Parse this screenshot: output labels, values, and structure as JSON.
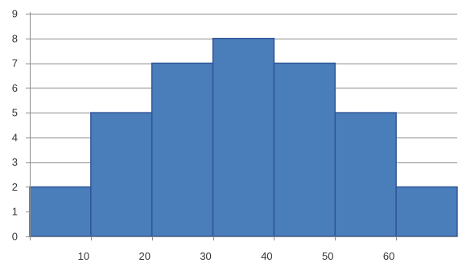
{
  "chart_data": {
    "type": "bar",
    "title": "",
    "xlabel": "",
    "ylabel": "",
    "bins": [
      {
        "start": 0,
        "end": 10,
        "value": 2
      },
      {
        "start": 10,
        "end": 20,
        "value": 5
      },
      {
        "start": 20,
        "end": 30,
        "value": 7
      },
      {
        "start": 30,
        "end": 40,
        "value": 8
      },
      {
        "start": 40,
        "end": 50,
        "value": 7
      },
      {
        "start": 50,
        "end": 60,
        "value": 5
      },
      {
        "start": 60,
        "end": 70,
        "value": 2
      }
    ],
    "values": [
      2,
      5,
      7,
      8,
      7,
      5,
      2
    ],
    "xlim": [
      0,
      70
    ],
    "ylim": [
      0,
      9
    ],
    "x_ticks": [
      10,
      20,
      30,
      40,
      50,
      60
    ],
    "x_tick_labels": [
      "10",
      "20",
      "30",
      "40",
      "50",
      "60"
    ],
    "y_ticks": [
      0,
      1,
      2,
      3,
      4,
      5,
      6,
      7,
      8,
      9
    ],
    "y_tick_labels": [
      "0",
      "1",
      "2",
      "3",
      "4",
      "5",
      "6",
      "7",
      "8",
      "9"
    ],
    "grid": "horizontal",
    "legend": "none",
    "colors": {
      "bar_fill": "#4a7ebb",
      "bar_stroke": "#2f5597",
      "grid": "#8c8c8c",
      "axis": "#8c8c8c",
      "text": "#333333"
    }
  }
}
